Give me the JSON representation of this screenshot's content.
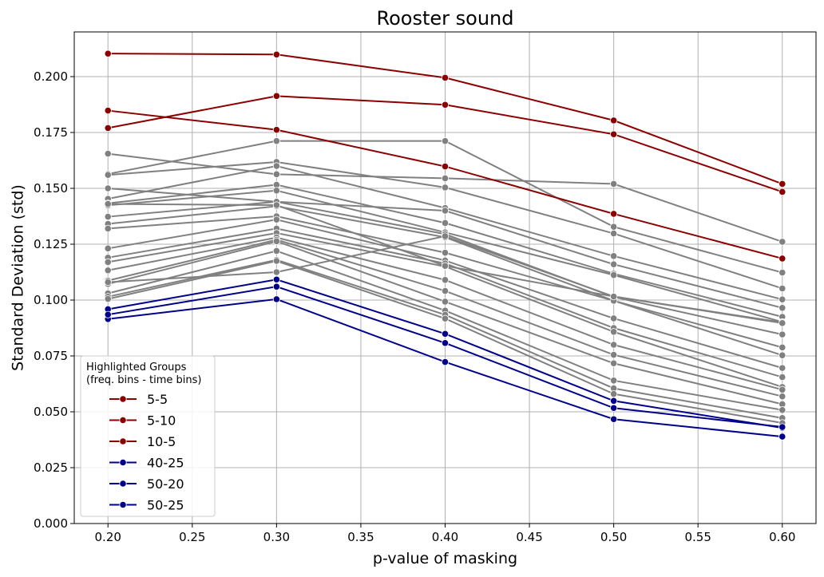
{
  "chart_data": {
    "type": "line",
    "title": "Rooster sound",
    "xlabel": "p-value of masking",
    "ylabel": "Standard Deviation (std)",
    "x": [
      0.2,
      0.3,
      0.4,
      0.5,
      0.6
    ],
    "xlim": [
      0.18,
      0.62
    ],
    "ylim": [
      0.0,
      0.22
    ],
    "xticks": [
      "0.20",
      "0.25",
      "0.30",
      "0.35",
      "0.40",
      "0.45",
      "0.50",
      "0.55",
      "0.60"
    ],
    "xtick_values": [
      0.2,
      0.25,
      0.3,
      0.35,
      0.4,
      0.45,
      0.5,
      0.55,
      0.6
    ],
    "yticks": [
      "0.000",
      "0.025",
      "0.050",
      "0.075",
      "0.100",
      "0.125",
      "0.150",
      "0.175",
      "0.200"
    ],
    "ytick_values": [
      0.0,
      0.025,
      0.05,
      0.075,
      0.1,
      0.125,
      0.15,
      0.175,
      0.2
    ],
    "grid": true,
    "legend": {
      "title_line1": "Highlighted Groups",
      "title_line2": "(freq. bins - time bins)",
      "placement": "lower-left"
    },
    "colors": {
      "red": "#8b0000",
      "blue": "#00008b",
      "gray": "#808080"
    },
    "highlighted_series": [
      {
        "name": "5-5",
        "color": "#8b0000",
        "values": [
          0.2103,
          0.2099,
          0.1995,
          0.1804,
          0.152
        ]
      },
      {
        "name": "5-10",
        "color": "#8b0000",
        "values": [
          0.177,
          0.1913,
          0.1874,
          0.1742,
          0.1484
        ]
      },
      {
        "name": "10-5",
        "color": "#8b0000",
        "values": [
          0.1848,
          0.1762,
          0.1598,
          0.1386,
          0.1186
        ]
      },
      {
        "name": "40-25",
        "color": "#00008b",
        "values": [
          0.0959,
          0.1092,
          0.0849,
          0.0549,
          0.0428
        ]
      },
      {
        "name": "50-20",
        "color": "#00008b",
        "values": [
          0.0915,
          0.1004,
          0.0723,
          0.0467,
          0.0389
        ]
      },
      {
        "name": "50-25",
        "color": "#00008b",
        "values": [
          0.0935,
          0.106,
          0.0808,
          0.0517,
          0.0432
        ]
      }
    ],
    "other_series": [
      {
        "values": [
          0.1655,
          0.1563,
          0.1545,
          0.152,
          0.1261
        ]
      },
      {
        "values": [
          0.1564,
          0.1712,
          0.1712,
          0.1328,
          0.1123
        ]
      },
      {
        "values": [
          0.156,
          0.1618,
          0.1504,
          0.1298,
          0.1052
        ]
      },
      {
        "values": [
          0.1453,
          0.16,
          0.1412,
          0.1197,
          0.1003
        ]
      },
      {
        "values": [
          0.15,
          0.144,
          0.14,
          0.116,
          0.0965
        ]
      },
      {
        "values": [
          0.1433,
          0.1516,
          0.1345,
          0.1118,
          0.0925
        ]
      },
      {
        "values": [
          0.1424,
          0.149,
          0.1303,
          0.1112,
          0.0902
        ]
      },
      {
        "values": [
          0.1373,
          0.144,
          0.1295,
          0.1014,
          0.0846
        ]
      },
      {
        "values": [
          0.1341,
          0.142,
          0.1281,
          0.0997,
          0.0788
        ]
      },
      {
        "values": [
          0.132,
          0.1375,
          0.1212,
          0.0997,
          0.0753
        ]
      },
      {
        "values": [
          0.1231,
          0.136,
          0.1177,
          0.0918,
          0.0696
        ]
      },
      {
        "values": [
          0.119,
          0.132,
          0.1164,
          0.0875,
          0.0655
        ]
      },
      {
        "values": [
          0.117,
          0.13,
          0.115,
          0.0858,
          0.0611
        ]
      },
      {
        "values": [
          0.1133,
          0.128,
          0.109,
          0.08,
          0.0599
        ]
      },
      {
        "values": [
          0.1087,
          0.127,
          0.1041,
          0.0755,
          0.0569
        ]
      },
      {
        "values": [
          0.1072,
          0.1263,
          0.0993,
          0.0717,
          0.0534
        ]
      },
      {
        "values": [
          0.103,
          0.122,
          0.0953,
          0.064,
          0.0508
        ]
      },
      {
        "values": [
          0.1015,
          0.118,
          0.0934,
          0.0605,
          0.0472
        ]
      },
      {
        "values": [
          0.1005,
          0.1175,
          0.0917,
          0.058,
          0.045
        ]
      },
      {
        "values": [
          0.108,
          0.1125,
          0.1286,
          0.1016,
          0.09
        ]
      },
      {
        "values": [
          0.143,
          0.1425,
          0.1153,
          0.1016,
          0.0897
        ]
      }
    ]
  }
}
